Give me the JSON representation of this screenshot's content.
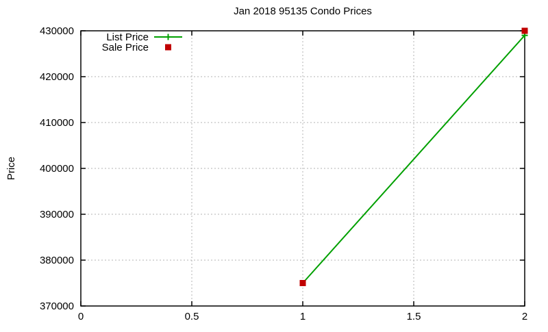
{
  "chart_data": {
    "type": "line",
    "title": "Jan 2018 95135 Condo Prices",
    "xlabel": "",
    "ylabel": "Price",
    "xlim": [
      0,
      2
    ],
    "ylim": [
      370000,
      430000
    ],
    "xticks": [
      0,
      0.5,
      1,
      1.5,
      2
    ],
    "xtick_labels": [
      "0",
      "0.5",
      "1",
      "1.5",
      "2"
    ],
    "yticks": [
      370000,
      380000,
      390000,
      400000,
      410000,
      420000,
      430000
    ],
    "ytick_labels": [
      "370000",
      "380000",
      "390000",
      "400000",
      "410000",
      "420000",
      "430000"
    ],
    "grid": true,
    "grid_style": "dotted",
    "legend_position": "top-left-inside",
    "series": [
      {
        "name": "List Price",
        "type": "line",
        "marker": "plus",
        "color": "#00a000",
        "x": [
          1,
          2
        ],
        "y": [
          375000,
          429000
        ]
      },
      {
        "name": "Sale Price",
        "type": "points",
        "marker": "square",
        "color": "#c00000",
        "x": [
          1,
          2
        ],
        "y": [
          375000,
          430000
        ]
      }
    ],
    "colors": {
      "list_price": "#00a000",
      "sale_price": "#c00000",
      "grid": "#b3b3b3",
      "axis": "#000000",
      "background": "#ffffff"
    }
  }
}
